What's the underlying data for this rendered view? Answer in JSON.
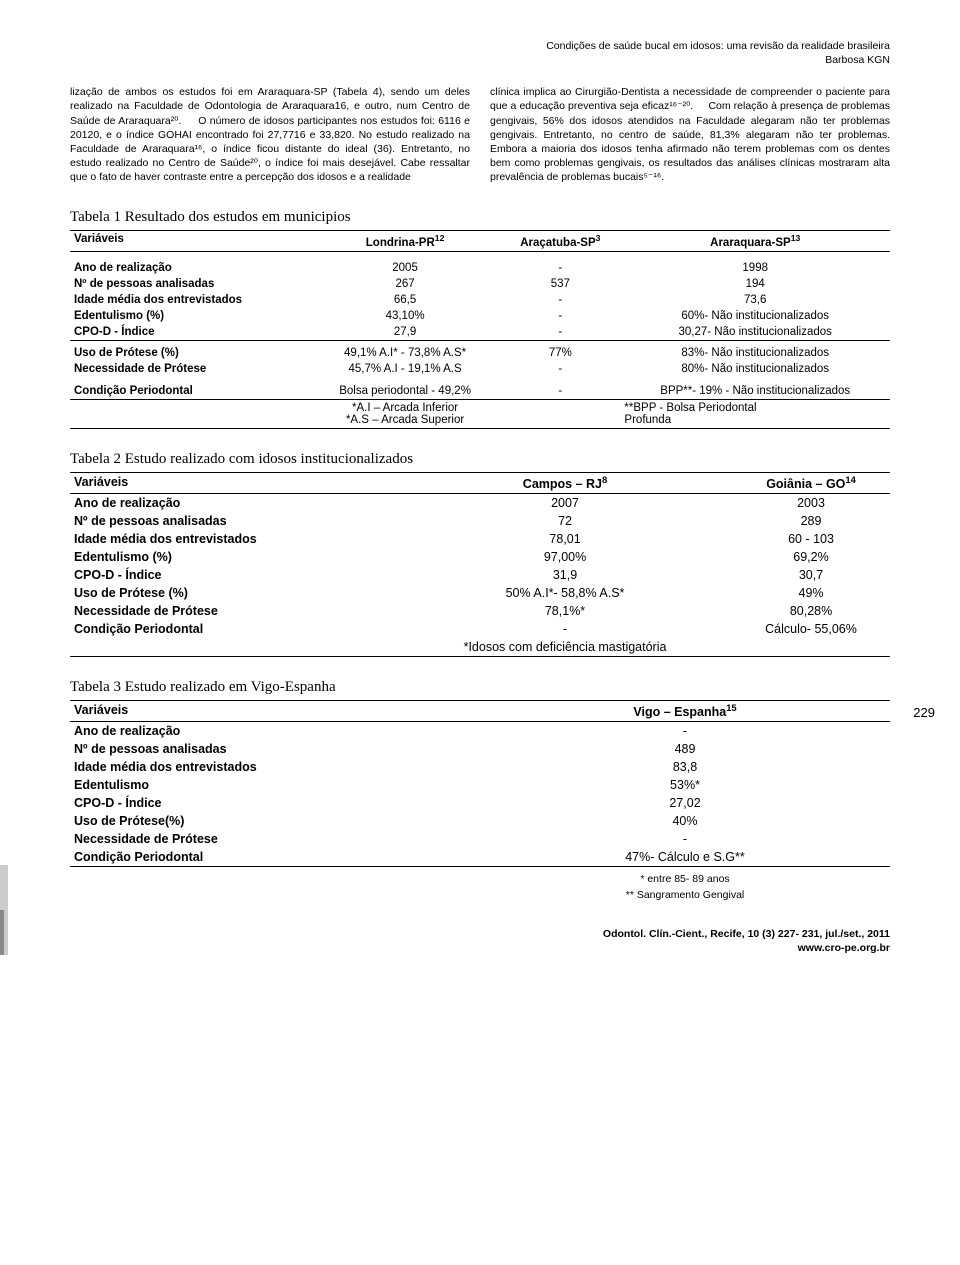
{
  "header": {
    "line1": "Condições de saúde bucal em idosos: uma revisão da realidade brasileira",
    "line2": "Barbosa KGN"
  },
  "body_left": "lização de ambos os estudos foi em Araraquara-SP (Tabela 4), sendo um deles realizado na Faculdade de Odontologia de Araraquara16, e outro, num Centro de Saúde de Araraquara²⁰.\n    O número de idosos participantes nos estudos foi: 6116 e 20120, e o índice GOHAI encontrado foi 27,7716 e 33,820. No estudo realizado na Faculdade de Araraquara¹⁶, o índice ficou distante do ideal (36). Entretanto, no estudo realizado no Centro de Saúde²⁰, o índice foi mais desejável. Cabe ressaltar que o fato de haver contraste entre a percepção dos idosos e a realidade",
  "body_right": "clínica implica ao Cirurgião-Dentista a necessidade de compreender o paciente para que a educação preventiva seja eficaz¹⁶⁻²⁰.\n    Com relação à presença de problemas gengivais, 56% dos idosos atendidos na Faculdade alegaram não ter problemas gengivais. Entretanto, no centro de saúde, 81,3% alegaram não ter problemas. Embora a maioria dos idosos tenha afirmado não terem problemas com os dentes bem como problemas gengivais, os resultados das análises clínicas mostraram alta prevalência de problemas bucais⁵⁻¹⁶.",
  "table1": {
    "title": "Tabela 1   Resultado dos estudos em municipios",
    "head": {
      "var": "Variáveis",
      "c1": "Londrina-PR",
      "c1sup": "12",
      "c2": "Araçatuba-SP",
      "c2sup": "3",
      "c3": "Araraquara-SP",
      "c3sup": "13"
    },
    "rows": [
      {
        "label": "Ano de realização",
        "c1": "2005",
        "c2": "-",
        "c3": "1998"
      },
      {
        "label": "Nº de pessoas analisadas",
        "c1": "267",
        "c2": "537",
        "c3": "194"
      },
      {
        "label": "Idade média dos entrevistados",
        "c1": "66,5",
        "c2": "-",
        "c3": "73,6"
      },
      {
        "label": "Edentulismo (%)",
        "c1": "43,10%",
        "c2": "-",
        "c3": "60%- Não institucionalizados"
      },
      {
        "label": "CPO-D - Índice",
        "c1": "27,9",
        "c2": "-",
        "c3": "30,27- Não institucionalizados"
      }
    ],
    "rows2": [
      {
        "label": "Uso de Prótese (%)",
        "c1": "49,1% A.I* - 73,8% A.S*",
        "c2": "77%",
        "c3": "83%- Não institucionalizados"
      },
      {
        "label": "Necessidade de Prótese",
        "c1": "45,7% A.I - 19,1% A.S",
        "c2": "-",
        "c3": "80%- Não institucionalizados"
      }
    ],
    "rows3": [
      {
        "label": "Condição Periodontal",
        "c1": "Bolsa periodontal - 49,2%",
        "c2": "-",
        "c3": "BPP**- 19% - Não institucionalizados"
      }
    ],
    "foot1a": "*A.I – Arcada Inferior",
    "foot1b": "*A.S – Arcada Superior",
    "foot2a": "**BPP - Bolsa Periodontal",
    "foot2b": "Profunda"
  },
  "table2": {
    "title": "Tabela 2   Estudo realizado com idosos institucionalizados",
    "head": {
      "var": "Variáveis",
      "c1": "Campos – RJ",
      "c1sup": "8",
      "c2": "Goiânia – GO",
      "c2sup": "14"
    },
    "rows": [
      {
        "label": "Ano de realização",
        "c1": "2007",
        "c2": "2003"
      },
      {
        "label": "Nº de pessoas analisadas",
        "c1": "72",
        "c2": "289"
      },
      {
        "label": "Idade média dos entrevistados",
        "c1": "78,01",
        "c2": "60 - 103"
      },
      {
        "label": "Edentulismo (%)",
        "c1": "97,00%",
        "c2": "69,2%"
      },
      {
        "label": "CPO-D - Índice",
        "c1": "31,9",
        "c2": "30,7"
      },
      {
        "label": "Uso de Prótese (%)",
        "c1": "50% A.I*- 58,8% A.S*",
        "c2": "49%"
      },
      {
        "label": "Necessidade de Prótese",
        "c1": "78,1%*",
        "c2": "80,28%"
      },
      {
        "label": "Condição Periodontal",
        "c1": "-",
        "c2": "Cálculo- 55,06%"
      }
    ],
    "foot": "*Idosos com deficiência mastigatória"
  },
  "table3": {
    "title": "Tabela 3   Estudo realizado em Vigo-Espanha",
    "head": {
      "var": "Variáveis",
      "c1": "Vigo – Espanha",
      "c1sup": "15"
    },
    "rows": [
      {
        "label": "Ano de realização",
        "c1": "-"
      },
      {
        "label": "Nº de pessoas analisadas",
        "c1": "489"
      },
      {
        "label": "Idade média dos entrevistados",
        "c1": "83,8"
      },
      {
        "label": "Edentulismo",
        "c1": "53%*"
      },
      {
        "label": "CPO-D - Índice",
        "c1": "27,02"
      },
      {
        "label": "Uso de Prótese(%)",
        "c1": "40%"
      },
      {
        "label": "Necessidade de Prótese",
        "c1": "-"
      },
      {
        "label": "Condição Periodontal",
        "c1": "47%- Cálculo e S.G**"
      }
    ],
    "foot1": "* entre 85- 89 anos",
    "foot2": "** Sangramento Gengival"
  },
  "page_number": "229",
  "footer": {
    "line1": "Odontol. Clín.-Cient., Recife, 10 (3) 227- 231, jul./set., 2011",
    "line2": "www.cro-pe.org.br"
  }
}
